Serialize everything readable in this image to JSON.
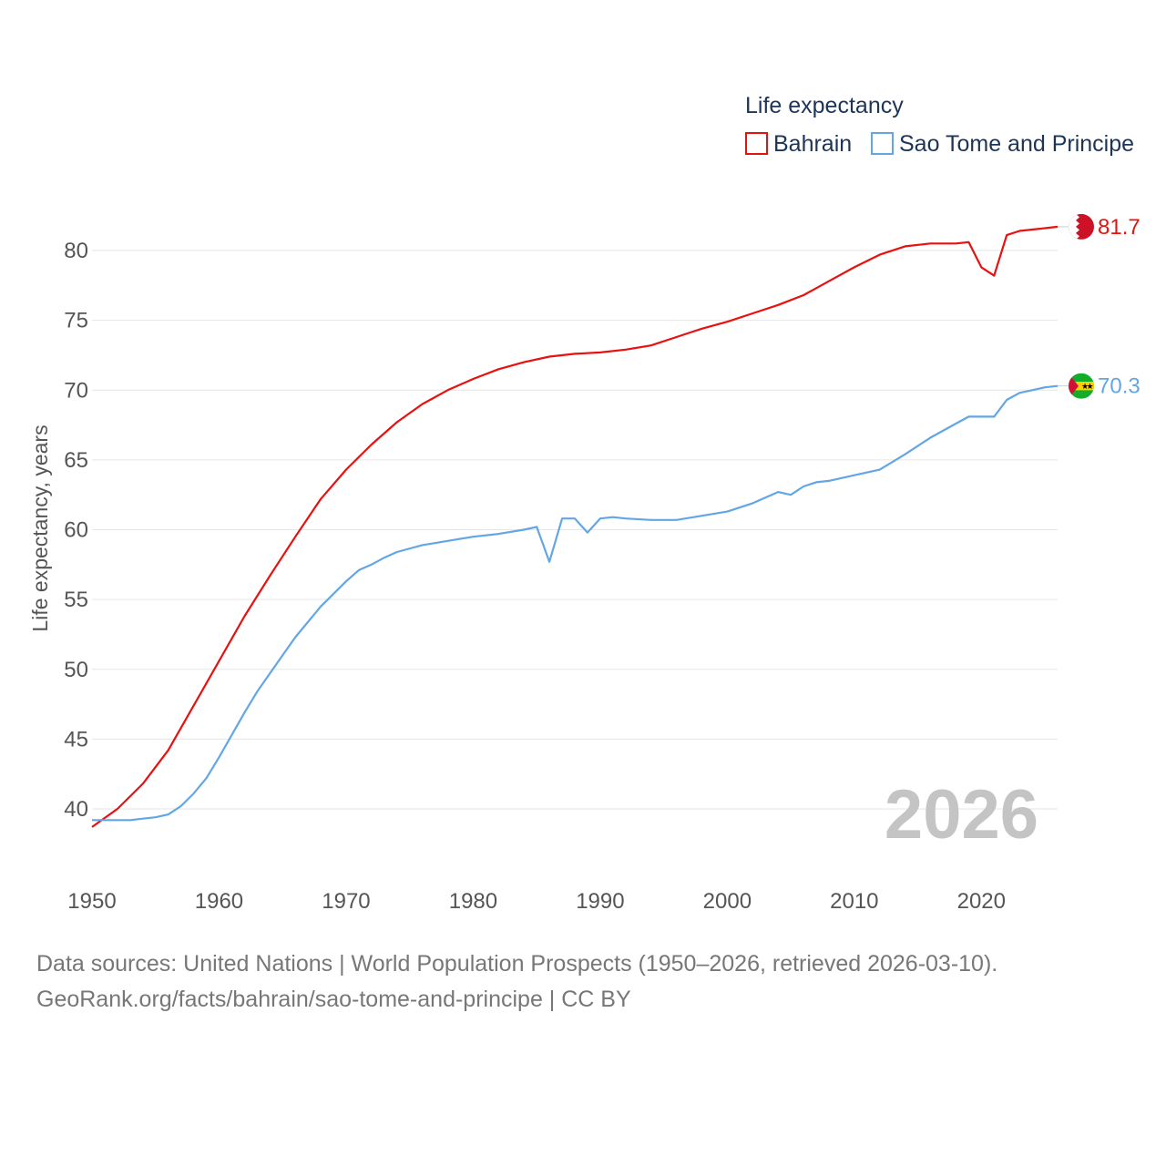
{
  "chart_data": {
    "type": "line",
    "legend_title": "Life expectancy",
    "ylabel": "Life expectancy, years",
    "xlim": [
      1950,
      2026
    ],
    "ylim": [
      36.5,
      83
    ],
    "yticks": [
      40,
      45,
      50,
      55,
      60,
      65,
      70,
      75,
      80
    ],
    "xticks": [
      1950,
      1960,
      1970,
      1980,
      1990,
      2000,
      2010,
      2020
    ],
    "current_year": "2026",
    "legend_position": "top-right",
    "series": [
      {
        "name": "Bahrain",
        "color": "#e8110f",
        "end_label": "81.7",
        "x": [
          1950,
          1952,
          1954,
          1956,
          1958,
          1960,
          1962,
          1964,
          1966,
          1968,
          1970,
          1972,
          1974,
          1976,
          1978,
          1980,
          1982,
          1984,
          1986,
          1988,
          1990,
          1992,
          1994,
          1996,
          1998,
          2000,
          2002,
          2004,
          2006,
          2008,
          2010,
          2012,
          2014,
          2016,
          2018,
          2019,
          2020,
          2021,
          2022,
          2023,
          2024,
          2025,
          2026
        ],
        "y": [
          38.7,
          40.0,
          41.8,
          44.2,
          47.4,
          50.6,
          53.8,
          56.7,
          59.5,
          62.2,
          64.3,
          66.1,
          67.7,
          69.0,
          70.0,
          70.8,
          71.5,
          72.0,
          72.4,
          72.6,
          72.7,
          72.9,
          73.2,
          73.8,
          74.4,
          74.9,
          75.5,
          76.1,
          76.8,
          77.8,
          78.8,
          79.7,
          80.3,
          80.5,
          80.5,
          80.6,
          78.8,
          78.2,
          81.1,
          81.4,
          81.5,
          81.6,
          81.7
        ]
      },
      {
        "name": "Sao Tome and Principe",
        "color": "#63a6e4",
        "end_label": "70.3",
        "x": [
          1950,
          1952,
          1953,
          1954,
          1955,
          1956,
          1957,
          1958,
          1959,
          1960,
          1962,
          1963,
          1964,
          1965,
          1966,
          1968,
          1970,
          1971,
          1972,
          1973,
          1974,
          1976,
          1978,
          1980,
          1982,
          1984,
          1985,
          1986,
          1987,
          1988,
          1989,
          1990,
          1991,
          1992,
          1994,
          1996,
          1998,
          2000,
          2002,
          2004,
          2005,
          2006,
          2007,
          2008,
          2010,
          2012,
          2014,
          2016,
          2018,
          2019,
          2020,
          2021,
          2022,
          2023,
          2024,
          2025,
          2026
        ],
        "y": [
          39.2,
          39.2,
          39.2,
          39.3,
          39.4,
          39.6,
          40.2,
          41.1,
          42.2,
          43.7,
          46.9,
          48.4,
          49.7,
          51.0,
          52.3,
          54.5,
          56.3,
          57.1,
          57.5,
          58.0,
          58.4,
          58.9,
          59.2,
          59.5,
          59.7,
          60.0,
          60.2,
          57.7,
          60.8,
          60.8,
          59.8,
          60.8,
          60.9,
          60.8,
          60.7,
          60.7,
          61.0,
          61.3,
          61.9,
          62.7,
          62.5,
          63.1,
          63.4,
          63.5,
          63.9,
          64.3,
          65.4,
          66.6,
          67.6,
          68.1,
          68.1,
          68.1,
          69.3,
          69.8,
          70.0,
          70.2,
          70.3
        ]
      }
    ]
  },
  "footer": {
    "sources": "Data sources: United Nations | World Population Prospects (1950–2026, retrieved 2026-03-10).",
    "link": "GeoRank.org/facts/bahrain/sao-tome-and-principe | CC BY"
  }
}
